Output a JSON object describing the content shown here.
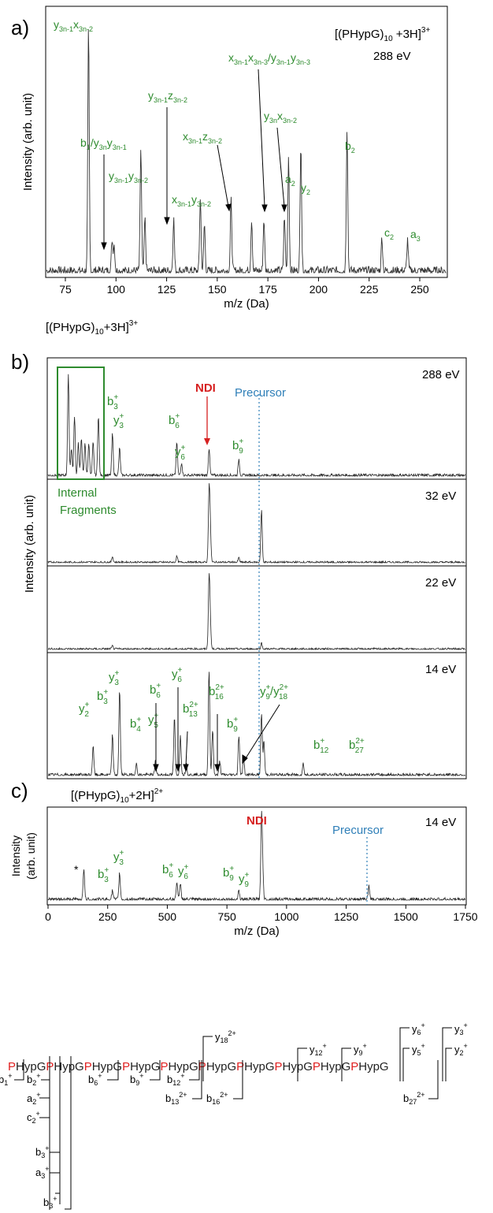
{
  "colors": {
    "green": "#2e8b2e",
    "red": "#d62020",
    "blue": "#2f7fb8",
    "trace": "#333333",
    "axis": "#000000",
    "seq_red": "#e02020",
    "seq_black": "#222222"
  },
  "panel_a": {
    "panel_label": "a)",
    "ion": "[(PHypG)",
    "ion_sub": "10",
    "ion_end": " +3H]",
    "ion_sup": "3+",
    "energy": "288 eV",
    "ylabel": "Intensity (arb. unit)",
    "xlabel": "m/z (Da)",
    "xticks": [
      "75",
      "100",
      "125",
      "150",
      "175",
      "200",
      "225",
      "250"
    ]
  },
  "panel_b": {
    "panel_label": "b)",
    "ion": "[(PHypG)",
    "ion_sub": "10",
    "ion_end": "+3H]",
    "ion_sup": "3+",
    "ylabel": "Intensity (arb. unit)",
    "energies": [
      "288 eV",
      "32 eV",
      "22 eV",
      "14 eV"
    ],
    "ndi": "NDI",
    "precursor": "Precursor",
    "internal_1": "Internal",
    "internal_2": "Fragments"
  },
  "panel_c": {
    "panel_label": "c)",
    "ion": "[(PHypG)",
    "ion_sub": "10",
    "ion_end": "+2H]",
    "ion_sup": "2+",
    "energy": "14 eV",
    "ylabel_1": "Intensity",
    "ylabel_2": "(arb. unit)",
    "ndi": "NDI",
    "precursor": "Precursor",
    "star": "*",
    "xlabel": "m/z (Da)",
    "xticks": [
      "0",
      "250",
      "500",
      "750",
      "1000",
      "1250",
      "1500",
      "1750"
    ]
  },
  "sequence": {
    "tokens": [
      {
        "p": "P",
        "rest": "HypG"
      },
      {
        "p": "P",
        "rest": "HypG"
      },
      {
        "p": "P",
        "rest": "HypG"
      },
      {
        "p": "P",
        "rest": "HypG"
      },
      {
        "p": "P",
        "rest": "HypG"
      },
      {
        "p": "P",
        "rest": "HypG"
      },
      {
        "p": "P",
        "rest": "HypG"
      },
      {
        "p": "P",
        "rest": "HypG"
      },
      {
        "p": "P",
        "rest": "HypG"
      },
      {
        "p": "P",
        "rest": "HypG"
      }
    ],
    "labels": {
      "b1": "b1+",
      "b2": "b2+",
      "a2": "a2+",
      "c2": "c2+",
      "b3": "b3+",
      "a3": "a3+",
      "b3b": "b3+",
      "b6": "b6+",
      "b9": "b9+",
      "b12": "b12+",
      "b13": "b13 2+",
      "b16": "b16 2+",
      "b27": "b27 2+",
      "y18": "y18 2+",
      "y12": "y12+",
      "y9": "y9+",
      "y6": "y6+",
      "y5": "y5+",
      "y3": "y3+",
      "y2": "y2+"
    }
  },
  "chart_data": [
    {
      "type": "line",
      "title": "[(PHypG)10 +3H]3+ 288 eV",
      "xlabel": "m/z (Da)",
      "ylabel": "Intensity (arb. unit)",
      "xlim": [
        65,
        260
      ],
      "peaks": [
        [
          85.5,
          0.93
        ],
        [
          97,
          0.12
        ],
        [
          98,
          0.1
        ],
        [
          111,
          0.47
        ],
        [
          113,
          0.2
        ],
        [
          127,
          0.2
        ],
        [
          140,
          0.28
        ],
        [
          142,
          0.18
        ],
        [
          155,
          0.27
        ],
        [
          165,
          0.2
        ],
        [
          171,
          0.2
        ],
        [
          181,
          0.21
        ],
        [
          183,
          0.44
        ],
        [
          189,
          0.5
        ],
        [
          211.5,
          0.55
        ],
        [
          228.5,
          0.13
        ],
        [
          241,
          0.12
        ]
      ],
      "annotations": [
        "y3n-1x3n-2",
        "b1/y3ny3n-1",
        "y3n-1y3n-2",
        "y3n-1z3n-2",
        "x3n-1y3n-2",
        "x3n-1z3n-2",
        "x3n-1x3n-3/y3n-1y3n-3",
        "y3nx3n-2",
        "a2",
        "y2",
        "b2",
        "c2",
        "a3"
      ]
    },
    {
      "type": "line",
      "title": "[(PHypG)10+3H]3+",
      "xlabel": "m/z (Da)",
      "ylabel": "Intensity (arb. unit)",
      "xlim": [
        0,
        1750
      ],
      "traces": [
        {
          "energy": "288 eV",
          "peaks": [
            [
              85,
              0.92
            ],
            [
              98,
              0.25
            ],
            [
              111,
              0.55
            ],
            [
              127,
              0.3
            ],
            [
              140,
              0.35
            ],
            [
              155,
              0.3
            ],
            [
              171,
              0.3
            ],
            [
              189,
              0.3
            ],
            [
              211,
              0.55
            ],
            [
              270,
              0.38
            ],
            [
              300,
              0.25
            ],
            [
              540,
              0.3
            ],
            [
              560,
              0.12
            ],
            [
              675,
              0.25
            ],
            [
              800,
              0.15
            ]
          ]
        },
        {
          "energy": "32 eV",
          "peaks": [
            [
              270,
              0.08
            ],
            [
              540,
              0.08
            ],
            [
              675,
              0.93
            ],
            [
              680,
              0.45
            ],
            [
              800,
              0.06
            ],
            [
              895,
              0.7
            ]
          ]
        },
        {
          "energy": "22 eV",
          "peaks": [
            [
              270,
              0.04
            ],
            [
              675,
              0.93
            ],
            [
              680,
              0.35
            ],
            [
              895,
              0.08
            ]
          ]
        },
        {
          "energy": "14 eV",
          "peaks": [
            [
              189,
              0.25
            ],
            [
              270,
              0.35
            ],
            [
              300,
              0.75
            ],
            [
              370,
              0.1
            ],
            [
              450,
              0.12
            ],
            [
              530,
              0.5
            ],
            [
              555,
              0.35
            ],
            [
              580,
              0.1
            ],
            [
              675,
              0.92
            ],
            [
              690,
              0.4
            ],
            [
              720,
              0.12
            ],
            [
              800,
              0.35
            ],
            [
              820,
              0.15
            ],
            [
              895,
              0.55
            ],
            [
              905,
              0.3
            ],
            [
              1070,
              0.1
            ]
          ]
        }
      ],
      "labels": [
        "b3+",
        "y3+",
        "b6+",
        "y6+",
        "b9+",
        "NDI",
        "Precursor",
        "Internal Fragments",
        "y2+",
        "b4+",
        "y5+",
        "b13 2+",
        "b16 2+",
        "y9+/y18 2+",
        "b12+",
        "b27 2+"
      ]
    },
    {
      "type": "line",
      "title": "[(PHypG)10+2H]2+ 14 eV",
      "xlabel": "m/z (Da)",
      "ylabel": "Intensity (arb. unit)",
      "xlim": [
        0,
        1750
      ],
      "xticks": [
        0,
        250,
        500,
        750,
        1000,
        1250,
        1500,
        1750
      ],
      "peaks": [
        [
          150,
          0.35
        ],
        [
          270,
          0.1
        ],
        [
          300,
          0.3
        ],
        [
          540,
          0.2
        ],
        [
          555,
          0.18
        ],
        [
          800,
          0.1
        ],
        [
          895,
          0.93
        ],
        [
          900,
          0.3
        ],
        [
          1345,
          0.15
        ]
      ],
      "labels": [
        "*",
        "b3+",
        "y3+",
        "b6+",
        "y6+",
        "b9+",
        "y9+",
        "NDI",
        "Precursor"
      ]
    }
  ]
}
